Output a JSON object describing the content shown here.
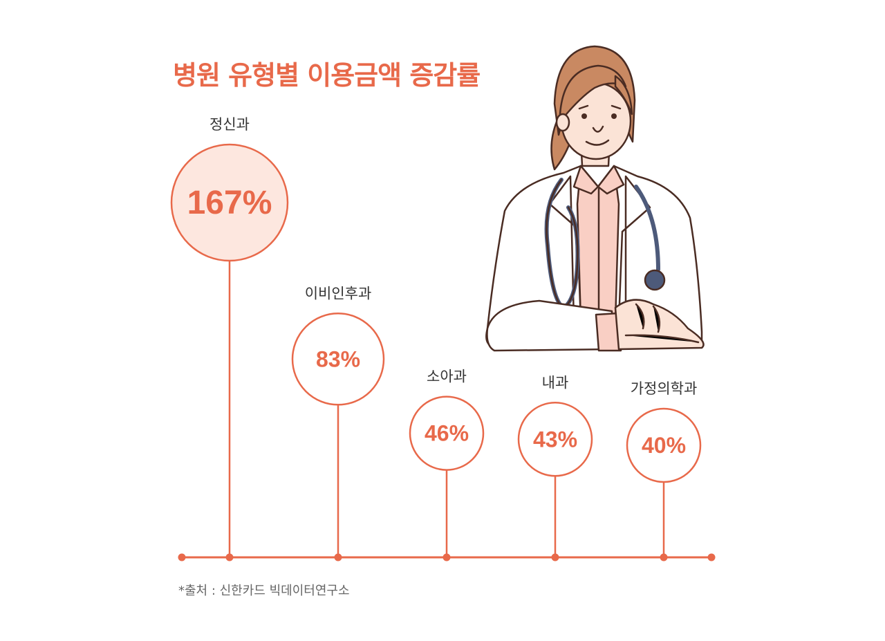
{
  "title": "병원 유형별 이용금액 증감률",
  "source": "*출처 : 신한카드 빅데이터연구소",
  "colors": {
    "accent": "#e8694a",
    "highlight_fill": "#fde7df",
    "label_text": "#333333"
  },
  "illustration": "doctor-with-stethoscope",
  "chart_data": {
    "type": "lollipop",
    "title": "병원 유형별 이용금액 증감률",
    "categories": [
      "정신과",
      "이비인후과",
      "소아과",
      "내과",
      "가정의학과"
    ],
    "values": [
      167,
      83,
      46,
      43,
      40
    ],
    "value_labels": [
      "167%",
      "83%",
      "46%",
      "43%",
      "40%"
    ],
    "unit": "%",
    "highlight_index": 0
  }
}
